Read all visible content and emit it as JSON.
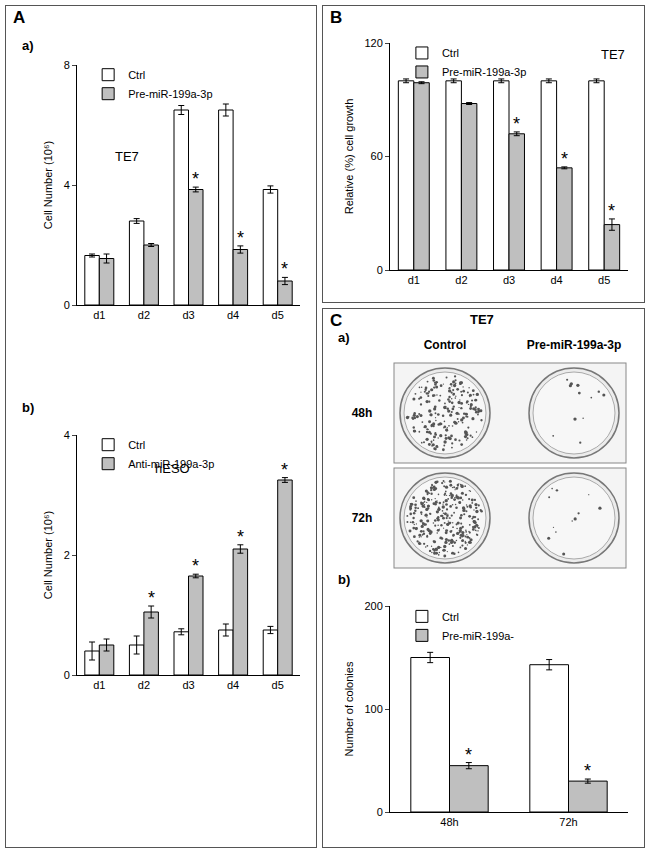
{
  "panels": [
    "A",
    "B",
    "C"
  ],
  "chart_data": [
    {
      "type": "bar",
      "label": "a)",
      "annotation": "TE7",
      "categories": [
        "d1",
        "d2",
        "d3",
        "d4",
        "d5"
      ],
      "series": [
        {
          "name": "Ctrl",
          "color": "#ffffff",
          "values": [
            1.65,
            2.8,
            6.5,
            6.5,
            3.85
          ],
          "errors": [
            0.05,
            0.08,
            0.15,
            0.2,
            0.12
          ],
          "marks": [
            null,
            null,
            null,
            null,
            null
          ]
        },
        {
          "name": "Pre-miR-199a-3p",
          "color": "#bfbfbf",
          "values": [
            1.55,
            2.0,
            3.85,
            1.85,
            0.8
          ],
          "errors": [
            0.15,
            0.05,
            0.08,
            0.12,
            0.12
          ],
          "marks": [
            null,
            null,
            "*",
            "*",
            "*"
          ]
        }
      ],
      "ylabel": "Cell Number (10⁶)",
      "ylim": [
        0,
        8
      ],
      "yticks": [
        0,
        4,
        8
      ],
      "grid": false,
      "legend": "top left"
    },
    {
      "type": "bar",
      "label": "b)",
      "annotation": "hESO",
      "categories": [
        "d1",
        "d2",
        "d3",
        "d4",
        "d5"
      ],
      "series": [
        {
          "name": "Ctrl",
          "color": "#ffffff",
          "values": [
            0.4,
            0.5,
            0.72,
            0.75,
            0.75
          ],
          "errors": [
            0.15,
            0.15,
            0.05,
            0.1,
            0.06
          ],
          "marks": [
            null,
            null,
            null,
            null,
            null
          ]
        },
        {
          "name": "Anti-miR-199a-3p",
          "color": "#bfbfbf",
          "values": [
            0.5,
            1.05,
            1.65,
            2.1,
            3.25
          ],
          "errors": [
            0.1,
            0.1,
            0.03,
            0.07,
            0.04
          ],
          "marks": [
            null,
            "*",
            "*",
            "*",
            "*"
          ]
        }
      ],
      "ylabel": "Cell Number (10⁶)",
      "ylim": [
        0,
        4
      ],
      "yticks": [
        0,
        2,
        4
      ],
      "grid": false,
      "legend": "top left"
    },
    {
      "type": "bar",
      "annotation": "TE7",
      "categories": [
        "d1",
        "d2",
        "d3",
        "d4",
        "d5"
      ],
      "series": [
        {
          "name": "Ctrl",
          "color": "#ffffff",
          "values": [
            100,
            100,
            100,
            100,
            100
          ],
          "errors": [
            1,
            1,
            1,
            1,
            1
          ],
          "marks": [
            null,
            null,
            null,
            null,
            null
          ]
        },
        {
          "name": "Pre-miR-199a-3p",
          "color": "#bfbfbf",
          "values": [
            99,
            88,
            72,
            54,
            24
          ],
          "errors": [
            0.5,
            0.5,
            1,
            0.5,
            3
          ],
          "marks": [
            null,
            null,
            "*",
            "*",
            "*"
          ]
        }
      ],
      "ylabel": "Relative (%) cell growth",
      "ylim": [
        0,
        120
      ],
      "yticks": [
        0,
        60,
        120
      ],
      "grid": false,
      "legend": "top left"
    },
    {
      "type": "bar",
      "label": "b)",
      "categories": [
        "48h",
        "72h"
      ],
      "series": [
        {
          "name": "Ctrl",
          "color": "#ffffff",
          "values": [
            150,
            143
          ],
          "errors": [
            5,
            5
          ],
          "marks": [
            null,
            null
          ]
        },
        {
          "name": "Pre-miR-199a-",
          "color": "#bfbfbf",
          "values": [
            45,
            30
          ],
          "errors": [
            3,
            2
          ],
          "marks": [
            "*",
            "*"
          ]
        }
      ],
      "ylabel": "Number of colonies",
      "ylim": [
        0,
        200
      ],
      "yticks": [
        0,
        100,
        200
      ],
      "grid": false,
      "legend": "top left"
    }
  ],
  "colony_images": {
    "title": "TE7",
    "label": "a)",
    "columns": [
      "Control",
      "Pre-miR-199a-3p"
    ],
    "rows": [
      "48h",
      "72h"
    ]
  }
}
